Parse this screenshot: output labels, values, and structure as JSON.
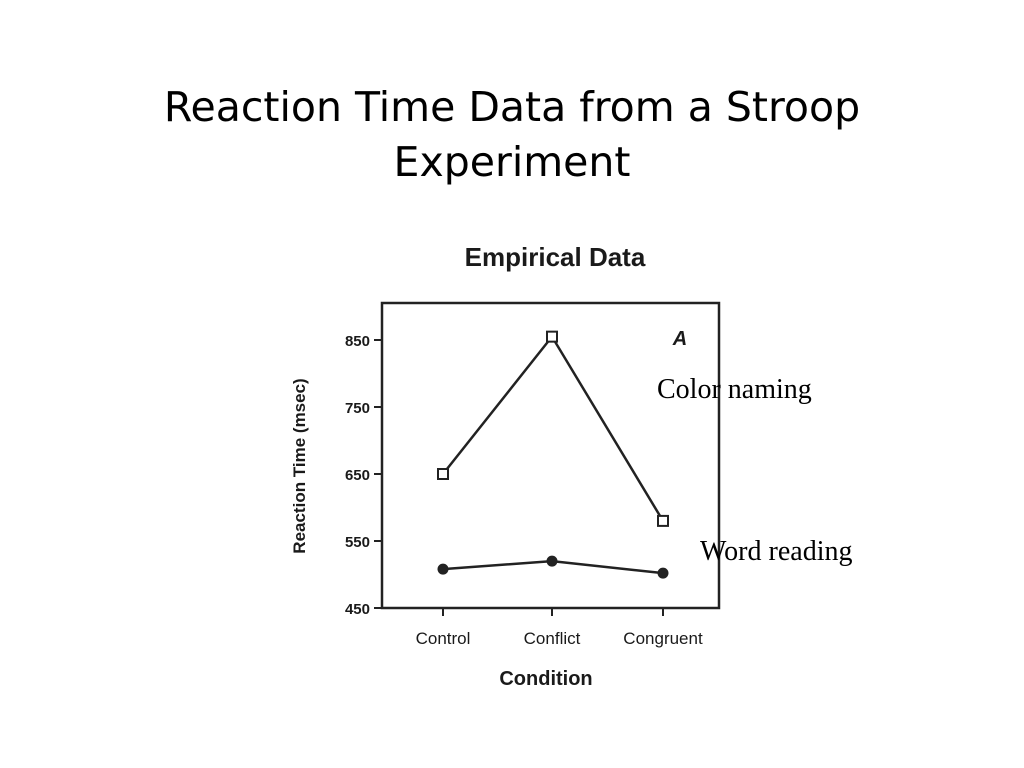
{
  "slide": {
    "title_line1": "Reaction Time Data from a Stroop",
    "title_line2": "Experiment"
  },
  "annotations": {
    "color_naming": "Color naming",
    "word_reading": "Word reading"
  },
  "chart_data": {
    "type": "line",
    "title": "Empirical Data",
    "panel_label": "A",
    "xlabel": "Condition",
    "ylabel": "Reaction Time (msec)",
    "categories": [
      "Control",
      "Conflict",
      "Congruent"
    ],
    "ylim": [
      450,
      900
    ],
    "yticks": [
      450,
      550,
      650,
      750,
      850
    ],
    "grid": false,
    "series": [
      {
        "marker": "open-square",
        "values": [
          650,
          855,
          580
        ]
      },
      {
        "marker": "filled-circle",
        "values": [
          508,
          520,
          502
        ]
      }
    ]
  }
}
